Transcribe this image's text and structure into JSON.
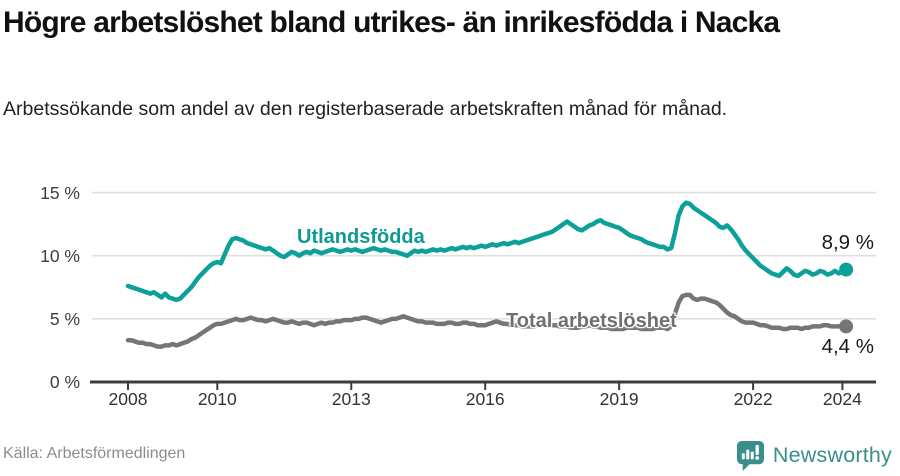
{
  "page": {
    "title": "Högre arbetslöshet bland utrikes- än inrikesfödda i Nacka",
    "subtitle": "Arbetssökande som andel av den registerbaserade arbetskraften månad för månad.",
    "source": "Källa: Arbetsförmedlingen"
  },
  "branding": {
    "logo_text": "Newsworthy",
    "logo_icon": "speech-bubble-with-bar-chart-and-exclamation",
    "logo_color": "#398f8b"
  },
  "colors": {
    "accent_teal": "#0ba099",
    "series_gray": "#757578",
    "grid": "#e0e0e0",
    "axis": "#3c3c3c",
    "title_text": "#111111",
    "value_label_text": "#1a1a1a",
    "source_text": "#8c8c8c"
  },
  "chart_data": {
    "type": "line",
    "title": "Högre arbetslöshet bland utrikes- än inrikesfödda i Nacka",
    "subtitle": "Arbetssökande som andel av den registerbaserade arbetskraften månad för månad.",
    "x_unit": "month",
    "x_start": "2008-01",
    "x_end": "2024-02",
    "ylim": [
      0,
      15
    ],
    "grid": true,
    "legend_position": "inline-annotations",
    "yticks": [
      {
        "label": "0 %",
        "value": 0
      },
      {
        "label": "5 %",
        "value": 5
      },
      {
        "label": "10 %",
        "value": 10
      },
      {
        "label": "15 %",
        "value": 15
      }
    ],
    "xticks": [
      {
        "label": "2008",
        "year": 2008
      },
      {
        "label": "2010",
        "year": 2010
      },
      {
        "label": "2013",
        "year": 2013
      },
      {
        "label": "2016",
        "year": 2016
      },
      {
        "label": "2019",
        "year": 2019
      },
      {
        "label": "2022",
        "year": 2022
      },
      {
        "label": "2024",
        "year": 2024
      }
    ],
    "series": [
      {
        "name": "Utlandsfödda",
        "end_label": "8,9 %",
        "end_value": 8.9,
        "color": "#0ba099",
        "values": [
          7.6,
          7.5,
          7.4,
          7.3,
          7.2,
          7.1,
          7.0,
          7.1,
          6.9,
          6.7,
          7.0,
          6.7,
          6.6,
          6.5,
          6.6,
          6.9,
          7.2,
          7.5,
          7.9,
          8.3,
          8.6,
          8.9,
          9.2,
          9.4,
          9.5,
          9.4,
          10.1,
          10.8,
          11.3,
          11.4,
          11.3,
          11.2,
          11.0,
          10.9,
          10.8,
          10.7,
          10.6,
          10.5,
          10.6,
          10.4,
          10.2,
          10.0,
          9.9,
          10.1,
          10.3,
          10.2,
          10.0,
          10.2,
          10.3,
          10.2,
          10.4,
          10.3,
          10.2,
          10.3,
          10.4,
          10.5,
          10.4,
          10.3,
          10.4,
          10.5,
          10.4,
          10.5,
          10.4,
          10.3,
          10.4,
          10.5,
          10.6,
          10.5,
          10.4,
          10.5,
          10.4,
          10.3,
          10.3,
          10.2,
          10.1,
          10.0,
          10.2,
          10.4,
          10.3,
          10.4,
          10.3,
          10.4,
          10.5,
          10.4,
          10.5,
          10.4,
          10.5,
          10.6,
          10.5,
          10.6,
          10.7,
          10.6,
          10.7,
          10.6,
          10.7,
          10.8,
          10.7,
          10.8,
          10.9,
          10.8,
          10.9,
          11.0,
          10.9,
          11.0,
          11.1,
          11.0,
          11.1,
          11.2,
          11.3,
          11.4,
          11.5,
          11.6,
          11.7,
          11.8,
          11.9,
          12.1,
          12.3,
          12.5,
          12.7,
          12.5,
          12.3,
          12.1,
          12.0,
          12.2,
          12.4,
          12.5,
          12.7,
          12.8,
          12.6,
          12.5,
          12.4,
          12.3,
          12.2,
          12.0,
          11.8,
          11.6,
          11.5,
          11.4,
          11.3,
          11.1,
          11.0,
          10.9,
          10.8,
          10.7,
          10.7,
          10.5,
          10.6,
          11.8,
          13.2,
          13.9,
          14.2,
          14.1,
          13.8,
          13.6,
          13.4,
          13.2,
          13.0,
          12.8,
          12.6,
          12.3,
          12.2,
          12.4,
          12.1,
          11.7,
          11.3,
          10.8,
          10.4,
          10.1,
          9.8,
          9.5,
          9.2,
          9.0,
          8.8,
          8.6,
          8.5,
          8.4,
          8.7,
          9.0,
          8.8,
          8.5,
          8.4,
          8.6,
          8.8,
          8.7,
          8.5,
          8.6,
          8.8,
          8.7,
          8.5,
          8.6,
          8.8,
          8.6,
          8.7,
          8.9
        ]
      },
      {
        "name": "Total arbetslöshet",
        "end_label": "4,4 %",
        "end_value": 4.4,
        "color": "#757578",
        "values": [
          3.3,
          3.3,
          3.2,
          3.1,
          3.1,
          3.0,
          3.0,
          2.9,
          2.8,
          2.8,
          2.9,
          2.9,
          3.0,
          2.9,
          3.0,
          3.1,
          3.2,
          3.4,
          3.5,
          3.7,
          3.9,
          4.1,
          4.3,
          4.5,
          4.6,
          4.6,
          4.7,
          4.8,
          4.9,
          5.0,
          4.9,
          4.9,
          5.0,
          5.1,
          5.0,
          4.9,
          4.9,
          4.8,
          4.9,
          5.0,
          4.9,
          4.8,
          4.7,
          4.7,
          4.8,
          4.7,
          4.6,
          4.7,
          4.7,
          4.6,
          4.5,
          4.6,
          4.7,
          4.6,
          4.7,
          4.7,
          4.8,
          4.8,
          4.9,
          4.9,
          4.9,
          5.0,
          5.0,
          5.1,
          5.1,
          5.0,
          4.9,
          4.8,
          4.7,
          4.8,
          4.9,
          5.0,
          5.0,
          5.1,
          5.2,
          5.1,
          5.0,
          4.9,
          4.8,
          4.8,
          4.7,
          4.7,
          4.7,
          4.6,
          4.6,
          4.6,
          4.7,
          4.7,
          4.6,
          4.6,
          4.7,
          4.7,
          4.6,
          4.6,
          4.5,
          4.5,
          4.5,
          4.6,
          4.7,
          4.8,
          4.7,
          4.6,
          4.6,
          4.5,
          4.5,
          4.5,
          4.4,
          4.4,
          4.4,
          4.4,
          4.5,
          4.5,
          4.6,
          4.6,
          4.5,
          4.5,
          4.4,
          4.4,
          4.4,
          4.3,
          4.3,
          4.3,
          4.4,
          4.4,
          4.5,
          4.4,
          4.4,
          4.3,
          4.3,
          4.3,
          4.2,
          4.2,
          4.2,
          4.2,
          4.3,
          4.3,
          4.3,
          4.3,
          4.2,
          4.2,
          4.2,
          4.2,
          4.3,
          4.3,
          4.3,
          4.2,
          4.4,
          5.4,
          6.3,
          6.8,
          6.9,
          6.9,
          6.6,
          6.5,
          6.6,
          6.6,
          6.5,
          6.4,
          6.3,
          6.1,
          5.8,
          5.5,
          5.3,
          5.2,
          5.0,
          4.8,
          4.7,
          4.7,
          4.7,
          4.6,
          4.5,
          4.5,
          4.4,
          4.3,
          4.3,
          4.3,
          4.2,
          4.2,
          4.3,
          4.3,
          4.3,
          4.2,
          4.3,
          4.3,
          4.4,
          4.4,
          4.4,
          4.5,
          4.5,
          4.4,
          4.4,
          4.4,
          4.4,
          4.4
        ]
      }
    ]
  }
}
